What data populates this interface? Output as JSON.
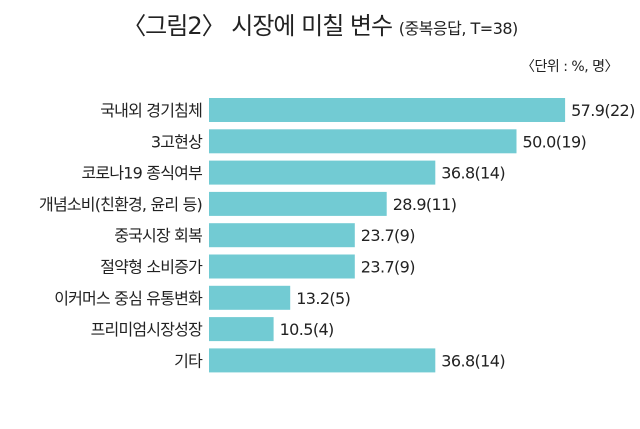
{
  "chart_title": "〈그림2〉 시장에 미칠 변수",
  "chart_subtitle": "(중복응답, T=38)",
  "unit_note": "〈단위 : %, 명〉",
  "colors": {
    "bar": "#72cbd3",
    "text": "#222222"
  },
  "chart_data": {
    "type": "bar",
    "orientation": "horizontal",
    "title": "〈그림2〉 시장에 미칠 변수",
    "subtitle": "(중복응답, T=38)",
    "categories": [
      "국내외 경기침체",
      "3고현상",
      "코로나19 종식여부",
      "개념소비(친환경, 윤리 등)",
      "중국시장 회복",
      "절약형 소비증가",
      "이커머스 중심 유통변화",
      "프리미엄시장성장",
      "기타"
    ],
    "values": [
      57.9,
      50.0,
      36.8,
      28.9,
      23.7,
      23.7,
      13.2,
      10.5,
      36.8
    ],
    "counts": [
      22,
      19,
      14,
      11,
      9,
      9,
      5,
      4,
      14
    ],
    "value_labels": [
      "57.9(22)",
      "50.0(19)",
      "36.8(14)",
      "28.9(11)",
      "23.7(9)",
      "23.7(9)",
      "13.2(5)",
      "10.5(4)",
      "36.8(14)"
    ],
    "xlim": [
      0,
      60
    ],
    "grid": false,
    "legend": "none"
  }
}
